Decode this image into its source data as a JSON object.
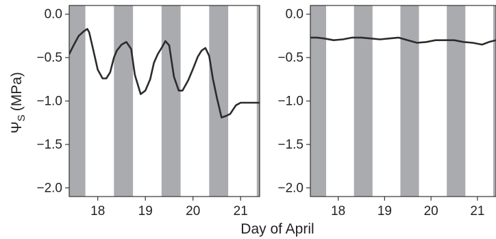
{
  "chart_data": [
    {
      "type": "line",
      "panel": "left",
      "title": "",
      "xlabel": "",
      "ylabel": "Ψ",
      "ylabel_subscript": "S",
      "ylabel_unit": "(MPa)",
      "x_unit": "day of April",
      "xlim": [
        17.4,
        21.4
      ],
      "ylim": [
        -2.1,
        0.1
      ],
      "xticks": [
        18,
        19,
        20,
        21
      ],
      "xtick_labels": [
        "18",
        "19",
        "20",
        "21"
      ],
      "yticks": [
        0,
        -0.5,
        -1,
        -1.5,
        -2
      ],
      "ytick_labels": [
        "0.0",
        "−0.5",
        "−1.0",
        "−1.5",
        "−2.0"
      ],
      "night_bands": [
        [
          17.4,
          17.74
        ],
        [
          18.34,
          18.74
        ],
        [
          19.34,
          19.74
        ],
        [
          20.34,
          20.74
        ],
        [
          21.34,
          21.4
        ]
      ],
      "band_color": "#a9abaf",
      "line_color": "#2b2b2b",
      "grid": false,
      "series": [
        {
          "x": [
            17.4,
            17.5,
            17.6,
            17.7,
            17.78,
            17.82,
            17.9,
            18.0,
            18.1,
            18.18,
            18.26,
            18.34,
            18.4,
            18.5,
            18.6,
            18.7,
            18.78,
            18.9,
            19.0,
            19.1,
            19.18,
            19.26,
            19.34,
            19.42,
            19.5,
            19.6,
            19.7,
            19.78,
            19.9,
            20.0,
            20.1,
            20.18,
            20.26,
            20.34,
            20.42,
            20.5,
            20.6,
            20.7,
            20.78,
            20.9,
            21.0,
            21.1,
            21.2,
            21.26,
            21.34,
            21.4
          ],
          "y": [
            -0.46,
            -0.35,
            -0.25,
            -0.2,
            -0.17,
            -0.21,
            -0.4,
            -0.64,
            -0.74,
            -0.74,
            -0.67,
            -0.5,
            -0.42,
            -0.35,
            -0.32,
            -0.4,
            -0.7,
            -0.92,
            -0.88,
            -0.75,
            -0.56,
            -0.46,
            -0.39,
            -0.31,
            -0.36,
            -0.72,
            -0.88,
            -0.88,
            -0.76,
            -0.63,
            -0.49,
            -0.42,
            -0.39,
            -0.48,
            -0.75,
            -0.96,
            -1.19,
            -1.17,
            -1.15,
            -1.05,
            -1.02,
            -1.02,
            -1.02,
            -1.02,
            -1.02,
            -1.02
          ]
        }
      ]
    },
    {
      "type": "line",
      "panel": "right",
      "title": "",
      "xlabel": "Day of April",
      "ylabel": "",
      "x_unit": "day of April",
      "xlim": [
        17.4,
        21.4
      ],
      "ylim": [
        -2.1,
        0.1
      ],
      "xticks": [
        18,
        19,
        20,
        21
      ],
      "xtick_labels": [
        "18",
        "19",
        "20",
        "21"
      ],
      "yticks": [
        0,
        -0.5,
        -1,
        -1.5,
        -2
      ],
      "ytick_labels": [
        "0.0",
        "−0.5",
        "−1.0",
        "−1.5",
        "−2.0"
      ],
      "night_bands": [
        [
          17.4,
          17.74
        ],
        [
          18.34,
          18.74
        ],
        [
          19.34,
          19.74
        ],
        [
          20.34,
          20.74
        ],
        [
          21.34,
          21.4
        ]
      ],
      "band_color": "#a9abaf",
      "line_color": "#2b2b2b",
      "grid": false,
      "series": [
        {
          "x": [
            17.4,
            17.55,
            17.7,
            17.9,
            18.1,
            18.3,
            18.5,
            18.7,
            18.9,
            19.1,
            19.3,
            19.5,
            19.7,
            19.9,
            20.1,
            20.3,
            20.5,
            20.7,
            20.9,
            21.1,
            21.25,
            21.4
          ],
          "y": [
            -0.27,
            -0.27,
            -0.28,
            -0.3,
            -0.29,
            -0.27,
            -0.27,
            -0.28,
            -0.29,
            -0.28,
            -0.27,
            -0.3,
            -0.33,
            -0.32,
            -0.3,
            -0.3,
            -0.3,
            -0.32,
            -0.33,
            -0.35,
            -0.32,
            -0.3
          ]
        }
      ]
    }
  ]
}
